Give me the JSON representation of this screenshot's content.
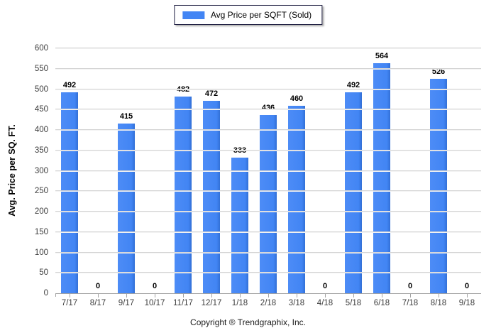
{
  "legend": {
    "label": "Avg Price per SQFT (Sold)"
  },
  "footer": {
    "copyright": "Copyright ® Trendgraphix, Inc."
  },
  "colors": {
    "bar": "#4285f4",
    "legend_border": "#222244",
    "gridline": "#d4d4d4",
    "axis": "#a3a3a3",
    "tick_text": "#3c3c3c"
  },
  "chart_data": {
    "type": "bar",
    "title": "",
    "categories": [
      "7/17",
      "8/17",
      "9/17",
      "10/17",
      "11/17",
      "12/17",
      "1/18",
      "2/18",
      "3/18",
      "4/18",
      "5/18",
      "6/18",
      "7/18",
      "8/18",
      "9/18"
    ],
    "values": [
      492,
      0,
      415,
      0,
      482,
      472,
      333,
      436,
      460,
      0,
      492,
      564,
      0,
      526,
      0
    ],
    "xlabel": "",
    "ylabel": "Avg. Price per SQ. FT.",
    "ylim": [
      0,
      600
    ],
    "ytick_step": 50,
    "yticks": [
      0,
      50,
      100,
      150,
      200,
      250,
      300,
      350,
      400,
      450,
      500,
      550,
      600
    ],
    "grid": true,
    "legend": "Avg Price per SQFT (Sold)",
    "legend_position": "top-center",
    "bar_color": "#4285f4",
    "value_labels": true
  }
}
